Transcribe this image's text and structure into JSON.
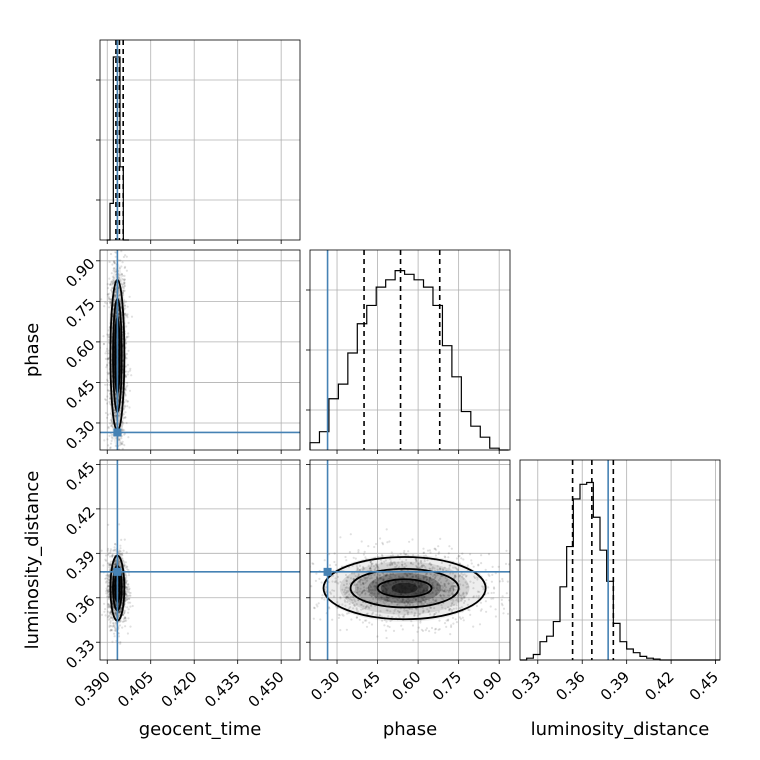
{
  "chart_data": {
    "type": "corner",
    "parameters": [
      "geocent_time",
      "phase",
      "luminosity_distance"
    ],
    "axis_labels": {
      "bottom": [
        "geocent_time",
        "phase",
        "luminosity_distance"
      ],
      "left": [
        "phase",
        "luminosity_distance"
      ]
    },
    "ranges": {
      "geocent_time": [
        0.3875,
        0.4565
      ],
      "phase": [
        0.2,
        0.94
      ],
      "luminosity_distance": [
        0.318,
        0.453
      ]
    },
    "ticks": {
      "geocent_time": [
        "0.390",
        "0.405",
        "0.420",
        "0.435",
        "0.450"
      ],
      "phase": [
        "0.30",
        "0.45",
        "0.60",
        "0.75",
        "0.90"
      ],
      "luminosity_distance": [
        "0.33",
        "0.36",
        "0.39",
        "0.42",
        "0.45"
      ]
    },
    "truths": {
      "geocent_time": 0.3935,
      "phase": 0.265,
      "luminosity_distance": 0.3775
    },
    "truth_color": "#4682b4",
    "quantiles": {
      "geocent_time": [
        0.393,
        0.3942,
        0.3955
      ],
      "phase": [
        0.4,
        0.535,
        0.68
      ],
      "luminosity_distance": [
        0.3535,
        0.3665,
        0.381
      ]
    },
    "histograms": {
      "geocent_time": {
        "edges": [
          0.3898,
          0.39095,
          0.3921,
          0.39325,
          0.3944,
          0.39555,
          0.3967,
          0.3975
        ],
        "values": [
          0,
          0.2,
          1.0,
          1.0,
          0.4,
          0,
          0
        ]
      },
      "phase": {
        "edges": [
          0.2,
          0.235,
          0.27,
          0.305,
          0.34,
          0.375,
          0.41,
          0.445,
          0.48,
          0.515,
          0.55,
          0.585,
          0.62,
          0.655,
          0.69,
          0.725,
          0.76,
          0.795,
          0.83,
          0.865,
          0.9,
          0.935
        ],
        "values": [
          0.04,
          0.1,
          0.28,
          0.36,
          0.53,
          0.69,
          0.79,
          0.89,
          0.93,
          0.98,
          0.96,
          0.93,
          0.89,
          0.79,
          0.57,
          0.4,
          0.21,
          0.13,
          0.07,
          0.01,
          0.0
        ]
      },
      "luminosity_distance": {
        "edges": [
          0.318,
          0.3225,
          0.327,
          0.3315,
          0.336,
          0.3405,
          0.345,
          0.3495,
          0.354,
          0.3585,
          0.363,
          0.3675,
          0.372,
          0.3765,
          0.381,
          0.3855,
          0.39,
          0.3945,
          0.399,
          0.4035,
          0.408,
          0.4125,
          0.417,
          0.4215,
          0.453
        ],
        "values": [
          0,
          0.01,
          0.03,
          0.1,
          0.13,
          0.21,
          0.4,
          0.62,
          0.88,
          0.96,
          0.97,
          0.78,
          0.6,
          0.43,
          0.2,
          0.1,
          0.06,
          0.04,
          0.02,
          0.01,
          0.005,
          0.0,
          0.0,
          0.0
        ]
      }
    },
    "joint": {
      "phase_vs_geocent_time": {
        "center": [
          0.3935,
          0.55
        ],
        "spread": [
          0.0016,
          0.18
        ],
        "contour_levels": [
          {
            "sx": 0.0008,
            "sy": 0.14
          },
          {
            "sx": 0.0015,
            "sy": 0.21
          },
          {
            "sx": 0.0024,
            "sy": 0.28
          }
        ]
      },
      "luminosity_distance_vs_geocent_time": {
        "center": [
          0.3935,
          0.3665
        ],
        "spread": [
          0.0016,
          0.012
        ],
        "contour_levels": [
          {
            "sx": 0.0008,
            "sy": 0.009
          },
          {
            "sx": 0.0015,
            "sy": 0.015
          },
          {
            "sx": 0.0024,
            "sy": 0.022
          }
        ]
      },
      "luminosity_distance_vs_phase": {
        "center": [
          0.55,
          0.3665
        ],
        "spread": [
          0.16,
          0.012
        ],
        "contour_levels": [
          {
            "sx": 0.1,
            "sy": 0.006
          },
          {
            "sx": 0.2,
            "sy": 0.013
          },
          {
            "sx": 0.3,
            "sy": 0.021
          }
        ]
      }
    },
    "grid": true
  }
}
